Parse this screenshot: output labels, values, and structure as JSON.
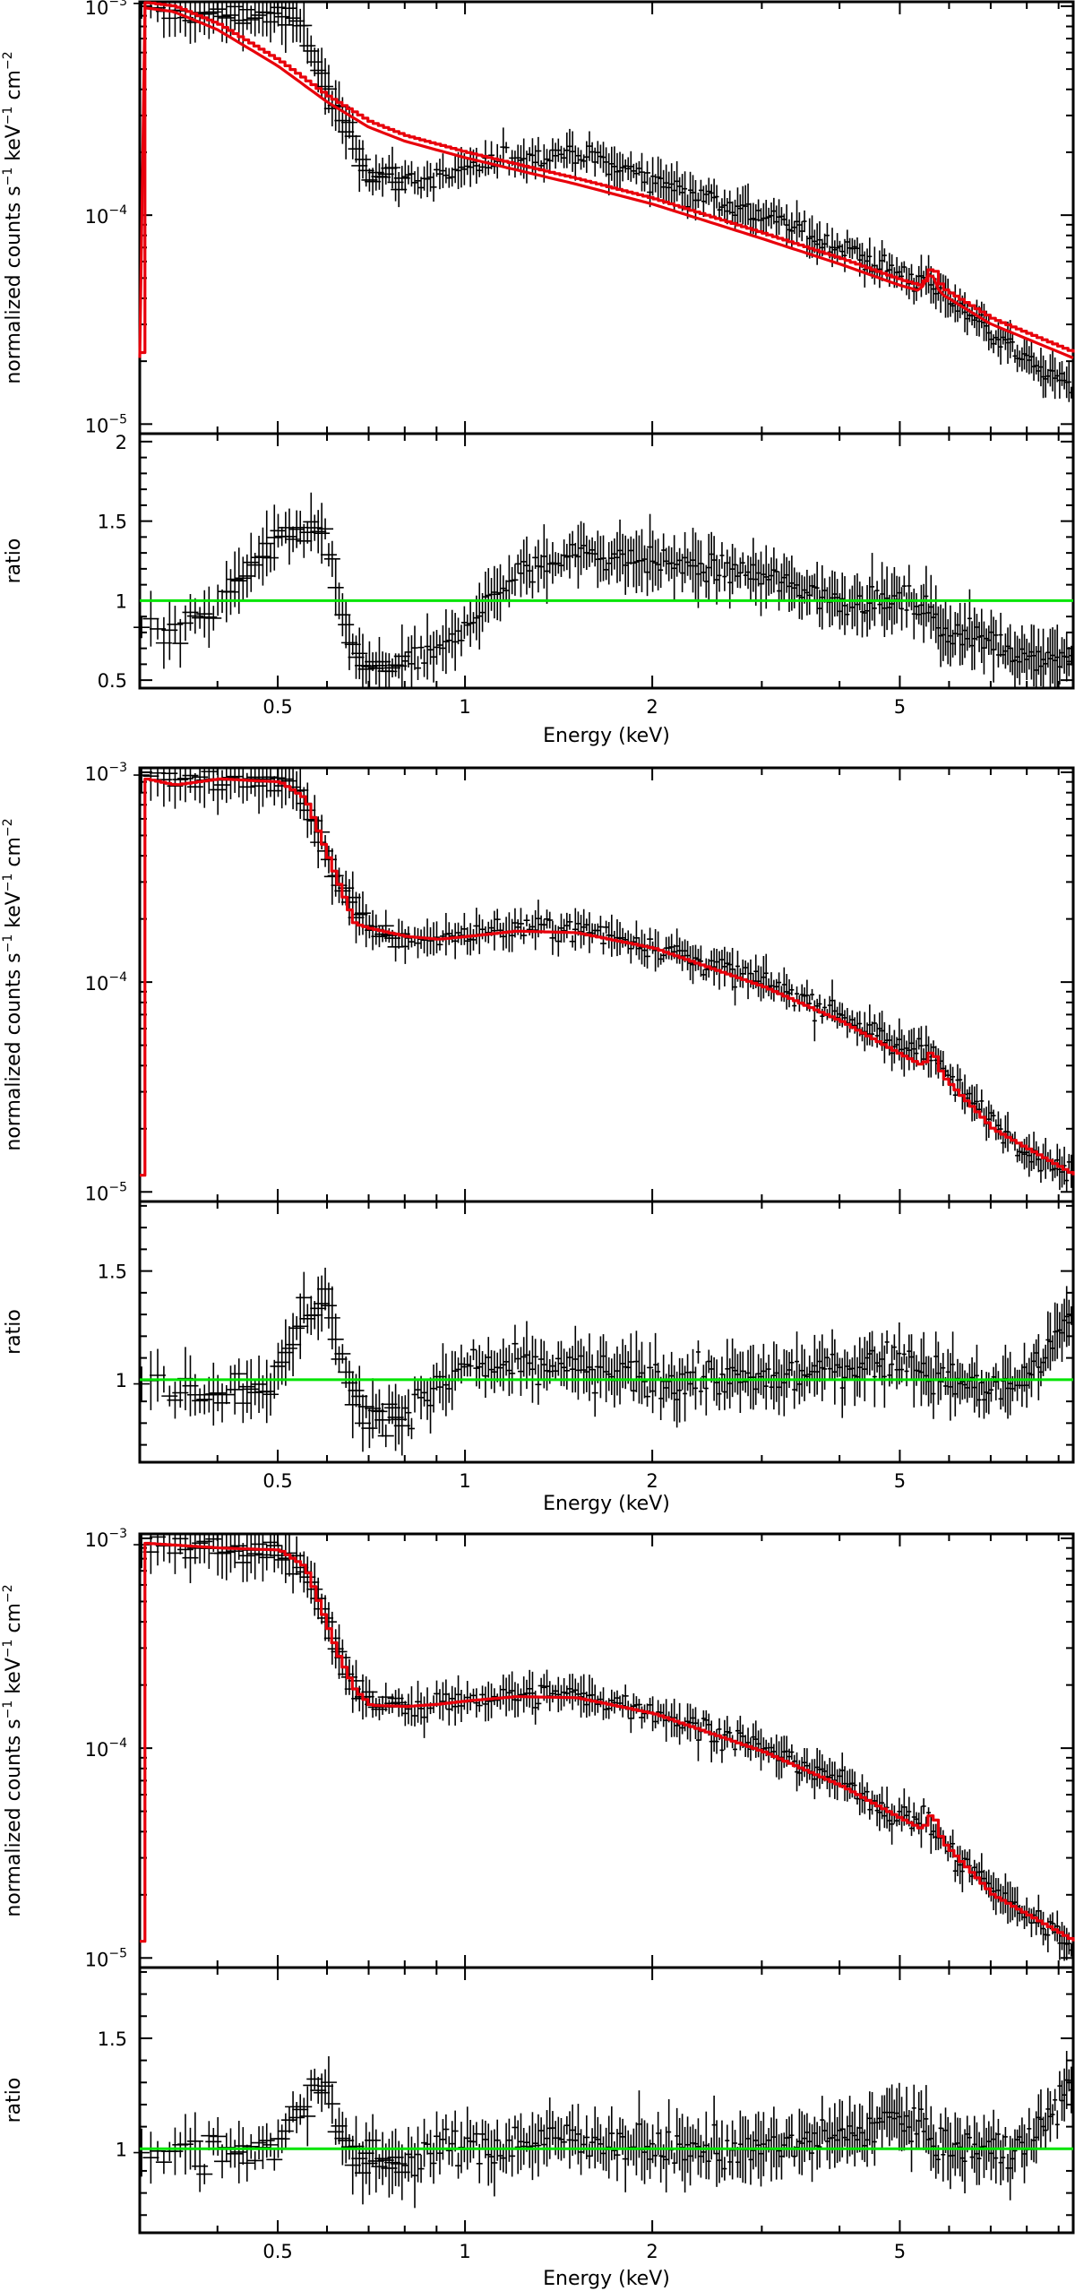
{
  "colors": {
    "data": "#000000",
    "model": "#e8000b",
    "reference_line": "#00e400",
    "background": "#ffffff"
  },
  "labels": {
    "spectrum_ylabel_main": "normalized counts s",
    "spectrum_ylabel_unit1": "keV",
    "spectrum_ylabel_unit2": "cm",
    "ratio_ylabel": "ratio",
    "xlabel": "Energy (keV)"
  },
  "chart_data": [
    {
      "type": "scatter",
      "panel": "spectrum",
      "xscale": "log",
      "yscale": "log",
      "xlim": [
        0.3,
        9.5
      ],
      "ylim": [
        9e-06,
        0.00105
      ],
      "x_ticks": [
        0.5,
        1,
        2,
        5
      ],
      "y_ticks": [
        {
          "v": 1e-05,
          "base": "10",
          "exp": "−5"
        },
        {
          "v": 0.0001,
          "base": "10",
          "exp": "−4"
        },
        {
          "v": 0.001,
          "base": "10",
          "exp": "−3"
        }
      ],
      "ylabel": "normalized counts s−1 keV−1 cm−2",
      "series": [
        {
          "role": "data",
          "shape": [
            [
              0.3,
              0.00095
            ],
            [
              0.4,
              0.0009
            ],
            [
              0.5,
              0.00092
            ],
            [
              0.55,
              0.00078
            ],
            [
              0.58,
              0.0005
            ],
            [
              0.62,
              0.00032
            ],
            [
              0.66,
              0.00024
            ],
            [
              0.7,
              0.00016
            ],
            [
              0.8,
              0.00015
            ],
            [
              0.9,
              0.00015
            ],
            [
              1.0,
              0.00016
            ],
            [
              1.2,
              0.00019
            ],
            [
              1.5,
              0.0002
            ],
            [
              2.0,
              0.00015
            ],
            [
              3.0,
              0.0001
            ],
            [
              4.0,
              7e-05
            ],
            [
              5.0,
              5.2e-05
            ],
            [
              5.5,
              4.8e-05
            ],
            [
              6.0,
              4e-05
            ],
            [
              7.0,
              2.8e-05
            ],
            [
              8.0,
              2e-05
            ],
            [
              9.5,
              1.5e-05
            ]
          ]
        },
        {
          "role": "model",
          "shape": [
            [
              0.3,
              0.00105
            ],
            [
              0.34,
              0.001
            ],
            [
              0.4,
              0.00082
            ],
            [
              0.5,
              0.00055
            ],
            [
              0.6,
              0.00037
            ],
            [
              0.7,
              0.00028
            ],
            [
              0.8,
              0.00024
            ],
            [
              1.0,
              0.0002
            ],
            [
              1.5,
              0.00015
            ],
            [
              2.0,
              0.00012
            ],
            [
              3.0,
              8.2e-05
            ],
            [
              4.0,
              6.2e-05
            ],
            [
              5.0,
              4.9e-05
            ],
            [
              5.4,
              4.6e-05
            ],
            [
              5.6,
              5.8e-05
            ],
            [
              5.8,
              4.5e-05
            ],
            [
              7.0,
              3.2e-05
            ],
            [
              9.5,
              2.2e-05
            ]
          ]
        }
      ]
    },
    {
      "type": "scatter",
      "panel": "ratio",
      "xscale": "log",
      "yscale": "linear",
      "xlim": [
        0.3,
        9.5
      ],
      "ylim": [
        0.45,
        2.05
      ],
      "x_ticks": [
        0.5,
        1,
        2,
        5
      ],
      "y_ticks": [
        0.5,
        1,
        1.5,
        2
      ],
      "reference_y": 1,
      "ylabel": "ratio",
      "xlabel": "Energy (keV)",
      "series": [
        {
          "role": "data",
          "shape": [
            [
              0.3,
              0.85
            ],
            [
              0.35,
              0.8
            ],
            [
              0.4,
              0.95
            ],
            [
              0.45,
              1.2
            ],
            [
              0.5,
              1.35
            ],
            [
              0.55,
              1.45
            ],
            [
              0.6,
              1.4
            ],
            [
              0.63,
              0.9
            ],
            [
              0.66,
              0.7
            ],
            [
              0.7,
              0.55
            ],
            [
              0.8,
              0.6
            ],
            [
              0.9,
              0.65
            ],
            [
              1.0,
              0.85
            ],
            [
              1.2,
              1.15
            ],
            [
              1.5,
              1.3
            ],
            [
              2.0,
              1.25
            ],
            [
              3.0,
              1.15
            ],
            [
              4.0,
              1.0
            ],
            [
              5.0,
              1.0
            ],
            [
              5.5,
              0.95
            ],
            [
              6.0,
              0.8
            ],
            [
              7.0,
              0.75
            ],
            [
              8.0,
              0.65
            ],
            [
              9.5,
              0.65
            ]
          ]
        }
      ]
    },
    {
      "type": "scatter",
      "panel": "spectrum",
      "xscale": "log",
      "yscale": "log",
      "xlim": [
        0.3,
        9.5
      ],
      "ylim": [
        9e-06,
        0.00105
      ],
      "x_ticks": [
        0.5,
        1,
        2,
        5
      ],
      "y_ticks": [
        {
          "v": 1e-05,
          "base": "10",
          "exp": "−5"
        },
        {
          "v": 0.0001,
          "base": "10",
          "exp": "−4"
        },
        {
          "v": 0.001,
          "base": "10",
          "exp": "−3"
        }
      ],
      "ylabel": "normalized counts s−1 keV−1 cm−2",
      "series": [
        {
          "role": "data",
          "shape": [
            [
              0.3,
              0.00095
            ],
            [
              0.4,
              0.0009
            ],
            [
              0.5,
              0.00092
            ],
            [
              0.55,
              0.00078
            ],
            [
              0.58,
              0.0005
            ],
            [
              0.62,
              0.00032
            ],
            [
              0.66,
              0.00024
            ],
            [
              0.7,
              0.00017
            ],
            [
              0.8,
              0.00016
            ],
            [
              0.9,
              0.00016
            ],
            [
              1.0,
              0.00017
            ],
            [
              1.2,
              0.00018
            ],
            [
              1.5,
              0.00018
            ],
            [
              2.0,
              0.00015
            ],
            [
              3.0,
              0.0001
            ],
            [
              4.0,
              7e-05
            ],
            [
              5.0,
              4.8e-05
            ],
            [
              5.5,
              5.2e-05
            ],
            [
              6.0,
              3.4e-05
            ],
            [
              7.0,
              2.2e-05
            ],
            [
              8.0,
              1.6e-05
            ],
            [
              9.5,
              1.2e-05
            ]
          ]
        },
        {
          "role": "model",
          "shape": [
            [
              0.3,
              0.00094
            ],
            [
              0.34,
              0.00087
            ],
            [
              0.4,
              0.00093
            ],
            [
              0.5,
              0.0009
            ],
            [
              0.55,
              0.00075
            ],
            [
              0.58,
              0.0005
            ],
            [
              0.62,
              0.0003
            ],
            [
              0.66,
              0.00019
            ],
            [
              0.7,
              0.00018
            ],
            [
              0.8,
              0.000165
            ],
            [
              0.9,
              0.00016
            ],
            [
              1.0,
              0.000165
            ],
            [
              1.2,
              0.000175
            ],
            [
              1.5,
              0.000172
            ],
            [
              2.0,
              0.000145
            ],
            [
              3.0,
              9.5e-05
            ],
            [
              4.0,
              6.5e-05
            ],
            [
              5.0,
              4.5e-05
            ],
            [
              5.4,
              4e-05
            ],
            [
              5.6,
              4.8e-05
            ],
            [
              5.8,
              3.6e-05
            ],
            [
              7.0,
              2e-05
            ],
            [
              9.5,
              1.2e-05
            ]
          ]
        }
      ]
    },
    {
      "type": "scatter",
      "panel": "ratio",
      "xscale": "log",
      "yscale": "linear",
      "xlim": [
        0.3,
        9.5
      ],
      "ylim": [
        0.62,
        1.82
      ],
      "x_ticks": [
        0.5,
        1,
        2,
        5
      ],
      "y_ticks": [
        1,
        1.5
      ],
      "reference_y": 1,
      "ylabel": "ratio",
      "xlabel": "Energy (keV)",
      "series": [
        {
          "role": "data",
          "shape": [
            [
              0.3,
              1.0
            ],
            [
              0.4,
              0.95
            ],
            [
              0.5,
              1.0
            ],
            [
              0.55,
              1.3
            ],
            [
              0.6,
              1.4
            ],
            [
              0.63,
              1.1
            ],
            [
              0.66,
              0.9
            ],
            [
              0.7,
              0.85
            ],
            [
              0.8,
              0.85
            ],
            [
              0.9,
              0.95
            ],
            [
              1.0,
              1.05
            ],
            [
              1.5,
              1.05
            ],
            [
              2.0,
              1.0
            ],
            [
              3.0,
              1.0
            ],
            [
              4.0,
              1.05
            ],
            [
              5.0,
              1.1
            ],
            [
              6.0,
              1.0
            ],
            [
              7.0,
              0.95
            ],
            [
              8.0,
              1.0
            ],
            [
              9.5,
              1.3
            ]
          ]
        }
      ]
    },
    {
      "type": "scatter",
      "panel": "spectrum",
      "xscale": "log",
      "yscale": "log",
      "xlim": [
        0.3,
        9.5
      ],
      "ylim": [
        9e-06,
        0.00105
      ],
      "x_ticks": [
        0.5,
        1,
        2,
        5
      ],
      "y_ticks": [
        {
          "v": 1e-05,
          "base": "10",
          "exp": "−5"
        },
        {
          "v": 0.0001,
          "base": "10",
          "exp": "−4"
        },
        {
          "v": 0.001,
          "base": "10",
          "exp": "−3"
        }
      ],
      "ylabel": "normalized counts s−1 keV−1 cm−2",
      "series": [
        {
          "role": "data",
          "shape": [
            [
              0.3,
              0.00095
            ],
            [
              0.4,
              0.00088
            ],
            [
              0.5,
              0.00088
            ],
            [
              0.55,
              0.00075
            ],
            [
              0.58,
              0.0005
            ],
            [
              0.62,
              0.0003
            ],
            [
              0.66,
              0.0002
            ],
            [
              0.7,
              0.00016
            ],
            [
              0.8,
              0.00016
            ],
            [
              0.9,
              0.00016
            ],
            [
              1.0,
              0.00017
            ],
            [
              1.2,
              0.00018
            ],
            [
              1.5,
              0.00018
            ],
            [
              2.0,
              0.00015
            ],
            [
              3.0,
              0.0001
            ],
            [
              4.0,
              7e-05
            ],
            [
              5.0,
              4.7e-05
            ],
            [
              5.5,
              4.5e-05
            ],
            [
              6.0,
              3.2e-05
            ],
            [
              7.0,
              2.2e-05
            ],
            [
              8.0,
              1.6e-05
            ],
            [
              9.5,
              1.2e-05
            ]
          ]
        },
        {
          "role": "model",
          "shape": [
            [
              0.3,
              0.00095
            ],
            [
              0.4,
              0.0009
            ],
            [
              0.5,
              0.00088
            ],
            [
              0.55,
              0.00073
            ],
            [
              0.58,
              0.00048
            ],
            [
              0.62,
              0.00028
            ],
            [
              0.66,
              0.00019
            ],
            [
              0.7,
              0.00016
            ],
            [
              0.8,
              0.000158
            ],
            [
              0.9,
              0.000162
            ],
            [
              1.0,
              0.000168
            ],
            [
              1.2,
              0.000176
            ],
            [
              1.5,
              0.000174
            ],
            [
              2.0,
              0.000146
            ],
            [
              3.0,
              9.6e-05
            ],
            [
              4.0,
              6.6e-05
            ],
            [
              5.0,
              4.6e-05
            ],
            [
              5.4,
              4.1e-05
            ],
            [
              5.6,
              5e-05
            ],
            [
              5.8,
              3.6e-05
            ],
            [
              7.0,
              2e-05
            ],
            [
              9.5,
              1.2e-05
            ]
          ]
        }
      ]
    },
    {
      "type": "scatter",
      "panel": "ratio",
      "xscale": "log",
      "yscale": "linear",
      "xlim": [
        0.3,
        9.5
      ],
      "ylim": [
        0.62,
        1.82
      ],
      "x_ticks": [
        0.5,
        1,
        2,
        5
      ],
      "y_ticks": [
        1,
        1.5
      ],
      "reference_y": 1,
      "ylabel": "ratio",
      "xlabel": "Energy (keV)",
      "series": [
        {
          "role": "data",
          "shape": [
            [
              0.3,
              0.95
            ],
            [
              0.4,
              1.0
            ],
            [
              0.5,
              1.0
            ],
            [
              0.55,
              1.2
            ],
            [
              0.6,
              1.3
            ],
            [
              0.63,
              1.1
            ],
            [
              0.66,
              0.95
            ],
            [
              0.7,
              0.95
            ],
            [
              0.8,
              0.95
            ],
            [
              0.9,
              1.0
            ],
            [
              1.0,
              1.0
            ],
            [
              1.5,
              1.05
            ],
            [
              2.0,
              1.0
            ],
            [
              3.0,
              1.0
            ],
            [
              4.0,
              1.05
            ],
            [
              5.0,
              1.15
            ],
            [
              6.0,
              1.0
            ],
            [
              7.0,
              1.0
            ],
            [
              8.0,
              1.0
            ],
            [
              9.5,
              1.3
            ]
          ]
        }
      ]
    }
  ]
}
